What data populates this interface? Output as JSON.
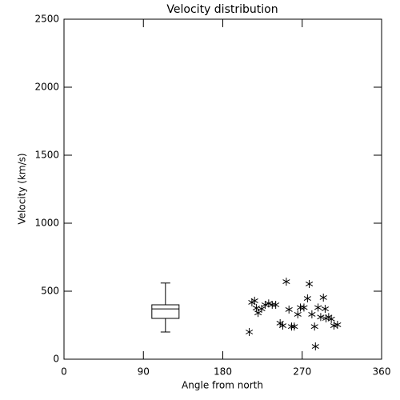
{
  "chart_data": {
    "type": "scatter",
    "title": "Velocity distribution",
    "x_label": "Angle from north",
    "y_label": "Velocity (km/s)",
    "xlim": [
      0,
      360
    ],
    "xticks": [
      0,
      90,
      180,
      270,
      360
    ],
    "ylim": [
      0,
      2500
    ],
    "yticks": [
      0,
      500,
      1000,
      1500,
      2000,
      2500
    ],
    "color": "#000000",
    "x": [
      210,
      213,
      216,
      218,
      220,
      224,
      228,
      232,
      236,
      240,
      245,
      248,
      252,
      255,
      258,
      261,
      265,
      268,
      272,
      276,
      278,
      281,
      284,
      285,
      288,
      291,
      294,
      296,
      297,
      300,
      303,
      306,
      310
    ],
    "values": [
      200,
      418,
      430,
      376,
      340,
      370,
      400,
      410,
      400,
      400,
      265,
      247,
      570,
      365,
      240,
      240,
      330,
      380,
      380,
      447,
      553,
      330,
      240,
      94,
      380,
      310,
      453,
      370,
      300,
      310,
      295,
      247,
      253
    ],
    "box": {
      "x": 115,
      "whislo": 200,
      "q1": 300,
      "med": 370,
      "q3": 400,
      "whishi": 560
    }
  }
}
